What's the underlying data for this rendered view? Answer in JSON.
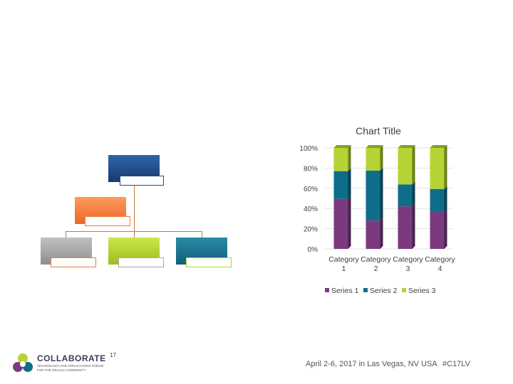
{
  "org_chart": {
    "top_color": "#1f4e8c",
    "mid_color": "#f07a3a",
    "bottom_colors": [
      "#a6a6a6",
      "#b5d334",
      "#1e7590"
    ]
  },
  "chart_data": {
    "type": "bar",
    "stacked": "percent",
    "title": "Chart Title",
    "categories": [
      "Category 1",
      "Category 2",
      "Category 3",
      "Category 4"
    ],
    "series": [
      {
        "name": "Series 1",
        "color": "#7b3a7e",
        "values": [
          4.3,
          2.5,
          3.5,
          4.5
        ]
      },
      {
        "name": "Series 2",
        "color": "#0f6d8a",
        "values": [
          2.4,
          4.4,
          1.8,
          2.8
        ]
      },
      {
        "name": "Series 3",
        "color": "#b5d334",
        "values": [
          2,
          2,
          3,
          5
        ]
      }
    ],
    "y_ticks": [
      "0%",
      "20%",
      "40%",
      "60%",
      "80%",
      "100%"
    ],
    "ylim": [
      0,
      100
    ],
    "legend_position": "bottom"
  },
  "footer": {
    "logo_text": "COLLABORATE",
    "logo_superscript": "17",
    "logo_tagline_1": "TECHNOLOGY AND APPLICATIONS FORUM",
    "logo_tagline_2": "FOR THE ORACLE COMMUNITY",
    "event_text": "April 2-6, 2017 in Las Vegas, NV USA",
    "hashtag": "#C17LV"
  }
}
